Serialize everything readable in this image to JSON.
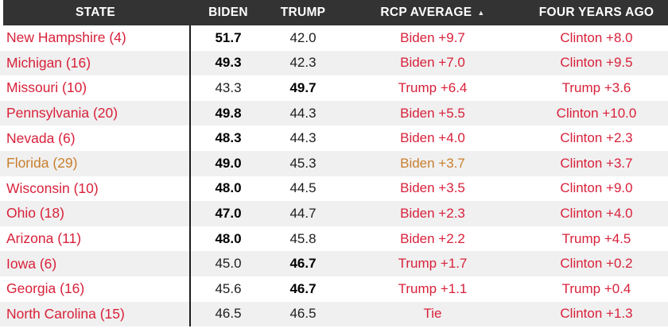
{
  "colors": {
    "header_bg": "#333333",
    "alt_row_bg": "#f0f0f0",
    "red": "#d8213a",
    "orange": "#c87f2e",
    "header_text": "#ffffff",
    "value_text": "#1d1d1d"
  },
  "table": {
    "sort_arrow": "▲",
    "columns": [
      {
        "key": "state",
        "label": "STATE"
      },
      {
        "key": "biden",
        "label": "BIDEN"
      },
      {
        "key": "trump",
        "label": "TRUMP"
      },
      {
        "key": "rcp",
        "label": "RCP AVERAGE"
      },
      {
        "key": "fya",
        "label": "FOUR YEARS AGO"
      }
    ],
    "rows": [
      {
        "state": "New Hampshire (4)",
        "biden": "51.7",
        "trump": "42.0",
        "leader": "biden",
        "rcp": "Biden +9.7",
        "fya": "Clinton +8.0",
        "highlighted": false
      },
      {
        "state": "Michigan (16)",
        "biden": "49.3",
        "trump": "42.3",
        "leader": "biden",
        "rcp": "Biden +7.0",
        "fya": "Clinton +9.5",
        "highlighted": false
      },
      {
        "state": "Missouri (10)",
        "biden": "43.3",
        "trump": "49.7",
        "leader": "trump",
        "rcp": "Trump +6.4",
        "fya": "Trump +3.6",
        "highlighted": false
      },
      {
        "state": "Pennsylvania (20)",
        "biden": "49.8",
        "trump": "44.3",
        "leader": "biden",
        "rcp": "Biden +5.5",
        "fya": "Clinton +10.0",
        "highlighted": false
      },
      {
        "state": "Nevada (6)",
        "biden": "48.3",
        "trump": "44.3",
        "leader": "biden",
        "rcp": "Biden +4.0",
        "fya": "Clinton +2.3",
        "highlighted": false
      },
      {
        "state": "Florida (29)",
        "biden": "49.0",
        "trump": "45.3",
        "leader": "biden",
        "rcp": "Biden +3.7",
        "fya": "Clinton +3.7",
        "highlighted": true
      },
      {
        "state": "Wisconsin (10)",
        "biden": "48.0",
        "trump": "44.5",
        "leader": "biden",
        "rcp": "Biden +3.5",
        "fya": "Clinton +9.0",
        "highlighted": false
      },
      {
        "state": "Ohio (18)",
        "biden": "47.0",
        "trump": "44.7",
        "leader": "biden",
        "rcp": "Biden +2.3",
        "fya": "Clinton +4.0",
        "highlighted": false
      },
      {
        "state": "Arizona (11)",
        "biden": "48.0",
        "trump": "45.8",
        "leader": "biden",
        "rcp": "Biden +2.2",
        "fya": "Trump +4.5",
        "highlighted": false
      },
      {
        "state": "Iowa (6)",
        "biden": "45.0",
        "trump": "46.7",
        "leader": "trump",
        "rcp": "Trump +1.7",
        "fya": "Clinton +0.2",
        "highlighted": false
      },
      {
        "state": "Georgia (16)",
        "biden": "45.6",
        "trump": "46.7",
        "leader": "trump",
        "rcp": "Trump +1.1",
        "fya": "Trump +0.4",
        "highlighted": false
      },
      {
        "state": "North Carolina (15)",
        "biden": "46.5",
        "trump": "46.5",
        "leader": "tie",
        "rcp": "Tie",
        "fya": "Clinton +1.3",
        "highlighted": false
      }
    ]
  }
}
